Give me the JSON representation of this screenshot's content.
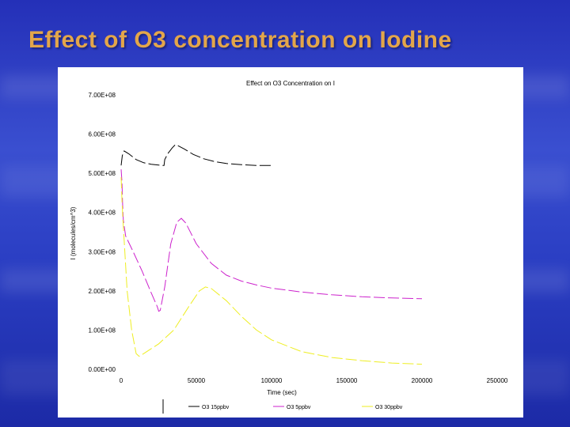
{
  "slide": {
    "title": "Effect of O3 concentration on Iodine"
  },
  "chart_data": {
    "type": "line",
    "title": "Effect on O3 Concentration on I",
    "xlabel": "Time (sec)",
    "ylabel": "I (molecules/cm^3)",
    "xlim": [
      0,
      250000
    ],
    "ylim": [
      0,
      700000000
    ],
    "x_ticks": [
      0,
      50000,
      100000,
      150000,
      200000,
      250000
    ],
    "x_tick_labels": [
      "0",
      "50000",
      "100000",
      "150000",
      "200000",
      "250000"
    ],
    "y_ticks": [
      0,
      100000000,
      200000000,
      300000000,
      400000000,
      500000000,
      600000000,
      700000000
    ],
    "y_tick_labels": [
      "0.00E+00",
      "1.00E+08",
      "2.00E+08",
      "3.00E+08",
      "4.00E+08",
      "5.00E+08",
      "6.00E+08",
      "7.00E+08"
    ],
    "grid": false,
    "legend_position": "bottom",
    "series": [
      {
        "name": "O3 15ppbv",
        "color": "#000000",
        "points": [
          [
            0,
            520000000
          ],
          [
            800,
            545000000
          ],
          [
            2000,
            557000000
          ],
          [
            5000,
            550000000
          ],
          [
            10000,
            535000000
          ],
          [
            15000,
            527000000
          ],
          [
            20000,
            523000000
          ],
          [
            25000,
            521000000
          ],
          [
            27000,
            520000000
          ],
          [
            28500,
            520000000
          ],
          [
            29000,
            535000000
          ],
          [
            31000,
            550000000
          ],
          [
            34000,
            565000000
          ],
          [
            36000,
            573000000
          ],
          [
            38000,
            570000000
          ],
          [
            42000,
            562000000
          ],
          [
            48000,
            548000000
          ],
          [
            55000,
            537000000
          ],
          [
            62000,
            530000000
          ],
          [
            70000,
            525000000
          ],
          [
            80000,
            522000000
          ],
          [
            85000,
            521000000
          ],
          [
            90000,
            520000000
          ],
          [
            100000,
            520000000
          ]
        ]
      },
      {
        "name": "O3 5ppbv",
        "color": "#cc22cc",
        "points": [
          [
            0,
            510000000
          ],
          [
            500,
            480000000
          ],
          [
            1000,
            420000000
          ],
          [
            1500,
            380000000
          ],
          [
            3000,
            340000000
          ],
          [
            8000,
            300000000
          ],
          [
            14000,
            250000000
          ],
          [
            20000,
            195000000
          ],
          [
            24000,
            160000000
          ],
          [
            25000,
            148000000
          ],
          [
            26000,
            150000000
          ],
          [
            29000,
            210000000
          ],
          [
            33000,
            320000000
          ],
          [
            37000,
            375000000
          ],
          [
            40000,
            385000000
          ],
          [
            43000,
            373000000
          ],
          [
            50000,
            320000000
          ],
          [
            60000,
            270000000
          ],
          [
            70000,
            240000000
          ],
          [
            80000,
            225000000
          ],
          [
            90000,
            215000000
          ],
          [
            100000,
            207000000
          ],
          [
            120000,
            197000000
          ],
          [
            140000,
            190000000
          ],
          [
            160000,
            185000000
          ],
          [
            180000,
            182000000
          ],
          [
            200000,
            180000000
          ]
        ]
      },
      {
        "name": "O3 30ppbv",
        "color": "#eeee22",
        "points": [
          [
            0,
            490000000
          ],
          [
            600,
            430000000
          ],
          [
            1200,
            380000000
          ],
          [
            2000,
            330000000
          ],
          [
            4000,
            200000000
          ],
          [
            7000,
            100000000
          ],
          [
            10000,
            40000000
          ],
          [
            12000,
            33000000
          ],
          [
            15000,
            40000000
          ],
          [
            25000,
            65000000
          ],
          [
            35000,
            100000000
          ],
          [
            45000,
            160000000
          ],
          [
            52000,
            200000000
          ],
          [
            56000,
            210000000
          ],
          [
            60000,
            206000000
          ],
          [
            70000,
            175000000
          ],
          [
            80000,
            135000000
          ],
          [
            90000,
            100000000
          ],
          [
            100000,
            75000000
          ],
          [
            120000,
            45000000
          ],
          [
            140000,
            30000000
          ],
          [
            160000,
            22000000
          ],
          [
            180000,
            16000000
          ],
          [
            200000,
            13000000
          ]
        ]
      }
    ]
  }
}
